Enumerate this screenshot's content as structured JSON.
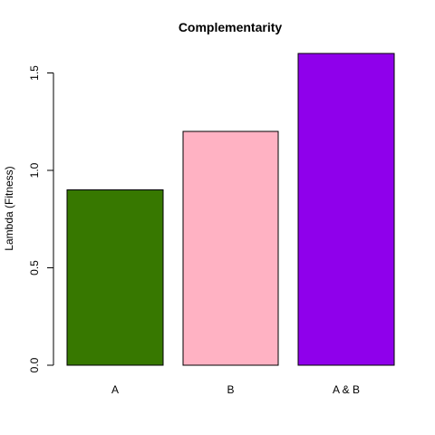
{
  "chart_data": {
    "type": "bar",
    "title": "Complementarity",
    "xlabel": "",
    "ylabel": "Lambda (Fitness)",
    "categories": [
      "A",
      "B",
      "A & B"
    ],
    "values": [
      0.9,
      1.2,
      1.6
    ],
    "colors": [
      "#377800",
      "#ffb2c3",
      "#8f00eb"
    ],
    "ylim": [
      0,
      1.6
    ],
    "yticks": [
      0.0,
      0.5,
      1.0,
      1.5
    ],
    "ytick_labels": [
      "0.0",
      "0.5",
      "1.0",
      "1.5"
    ],
    "grid": false,
    "legend": "none"
  }
}
